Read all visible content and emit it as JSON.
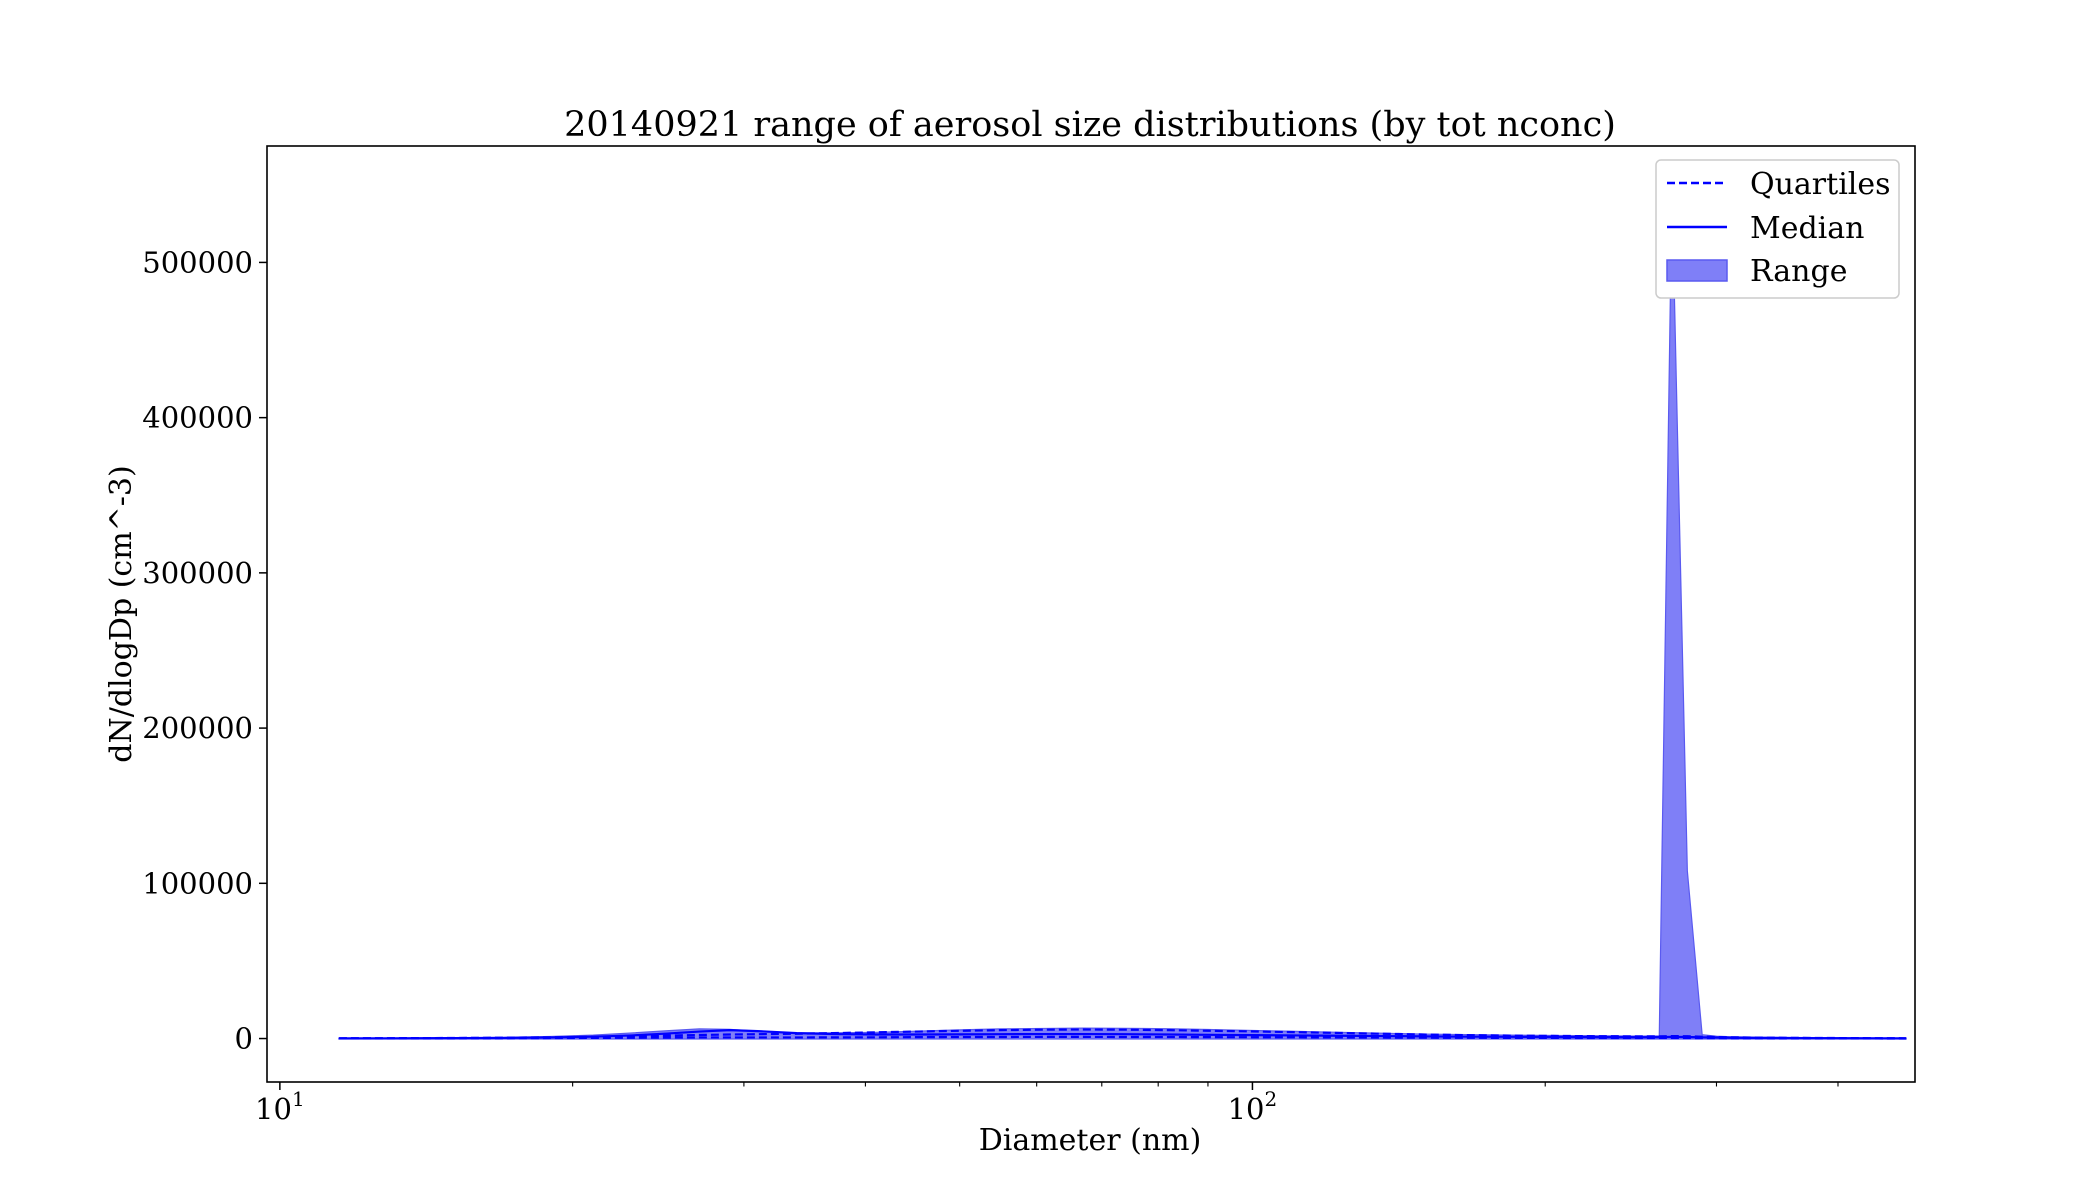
{
  "chart_data": {
    "type": "area",
    "title": "20140921 range of aerosol size distributions (by tot nconc)",
    "xlabel": "Diameter (nm)",
    "ylabel": "dN/dlogDp (cm^-3)",
    "x_scale": "log",
    "xlim": [
      9.7,
      480
    ],
    "ylim": [
      -28000,
      575000
    ],
    "grid": false,
    "legend_position": "upper right",
    "x_ticks": [
      {
        "value": 10,
        "base": "10",
        "exp": "1"
      },
      {
        "value": 100,
        "base": "10",
        "exp": "2"
      }
    ],
    "y_ticks": [
      0,
      100000,
      200000,
      300000,
      400000,
      500000
    ],
    "y_tick_labels": [
      "0",
      "100000",
      "200000",
      "300000",
      "400000",
      "500000"
    ],
    "colors": {
      "line": "#0000ff",
      "fill": "#7f7ff7",
      "fill_edge": "#5a5af0"
    },
    "legend": [
      {
        "label": "Quartiles",
        "style": "dashed"
      },
      {
        "label": "Median",
        "style": "solid"
      },
      {
        "label": "Range",
        "style": "fill"
      }
    ],
    "x": [
      11.5,
      13,
      15,
      17,
      19,
      21,
      23,
      25,
      27,
      29,
      31,
      34,
      37,
      41,
      45,
      50,
      55,
      61,
      67,
      74,
      82,
      90,
      100,
      111,
      123,
      136,
      150,
      166,
      184,
      204,
      226,
      250,
      262,
      270,
      280,
      290,
      300,
      310,
      330,
      360,
      400,
      440,
      470
    ],
    "series": [
      {
        "name": "Range",
        "role": "upper",
        "values": [
          200,
          300,
          500,
          800,
          1300,
          2200,
          3600,
          5000,
          6200,
          5900,
          4700,
          3700,
          3700,
          4000,
          4700,
          5600,
          6200,
          6500,
          6700,
          6600,
          6300,
          5800,
          5200,
          4600,
          4000,
          3400,
          2900,
          2500,
          2200,
          2000,
          1800,
          1600,
          1700,
          548000,
          108000,
          2500,
          1500,
          1200,
          900,
          700,
          500,
          350,
          250
        ]
      },
      {
        "name": "Range",
        "role": "lower",
        "values": [
          -300,
          -300,
          -300,
          -300,
          -300,
          -300,
          -300,
          -300,
          -300,
          -300,
          -300,
          -300,
          -300,
          -300,
          -300,
          -300,
          -300,
          -300,
          -300,
          -300,
          -300,
          -300,
          -300,
          -300,
          -300,
          -300,
          -300,
          -300,
          -300,
          -300,
          -300,
          -300,
          -300,
          -300,
          -300,
          -300,
          -300,
          -300,
          -300,
          -300,
          -300,
          -300,
          -300
        ]
      },
      {
        "name": "Quartiles",
        "role": "q3",
        "values": [
          150,
          220,
          350,
          550,
          800,
          1100,
          1500,
          1900,
          2300,
          2600,
          2800,
          3100,
          3500,
          4000,
          4500,
          5000,
          5400,
          5700,
          5800,
          5700,
          5400,
          5000,
          4600,
          4100,
          3600,
          3100,
          2600,
          2200,
          1900,
          1700,
          1500,
          1400,
          1400,
          1600,
          1500,
          1200,
          1000,
          800,
          600,
          450,
          320,
          220,
          150
        ]
      },
      {
        "name": "Quartiles",
        "role": "q1",
        "values": [
          50,
          80,
          120,
          200,
          300,
          400,
          500,
          600,
          700,
          700,
          700,
          700,
          750,
          800,
          900,
          950,
          1000,
          1050,
          1050,
          1000,
          950,
          900,
          850,
          780,
          700,
          620,
          550,
          480,
          420,
          380,
          340,
          300,
          300,
          320,
          300,
          260,
          220,
          180,
          140,
          100,
          70,
          50,
          40
        ]
      },
      {
        "name": "Median",
        "role": "median",
        "values": [
          100,
          150,
          250,
          400,
          700,
          1200,
          2000,
          3200,
          4500,
          5400,
          4800,
          3500,
          2900,
          2600,
          2600,
          2700,
          2800,
          2900,
          2900,
          2800,
          2600,
          2400,
          2200,
          2000,
          1800,
          1600,
          1400,
          1200,
          1100,
          1000,
          900,
          850,
          900,
          1100,
          1000,
          800,
          650,
          520,
          400,
          300,
          220,
          160,
          100
        ]
      }
    ]
  }
}
